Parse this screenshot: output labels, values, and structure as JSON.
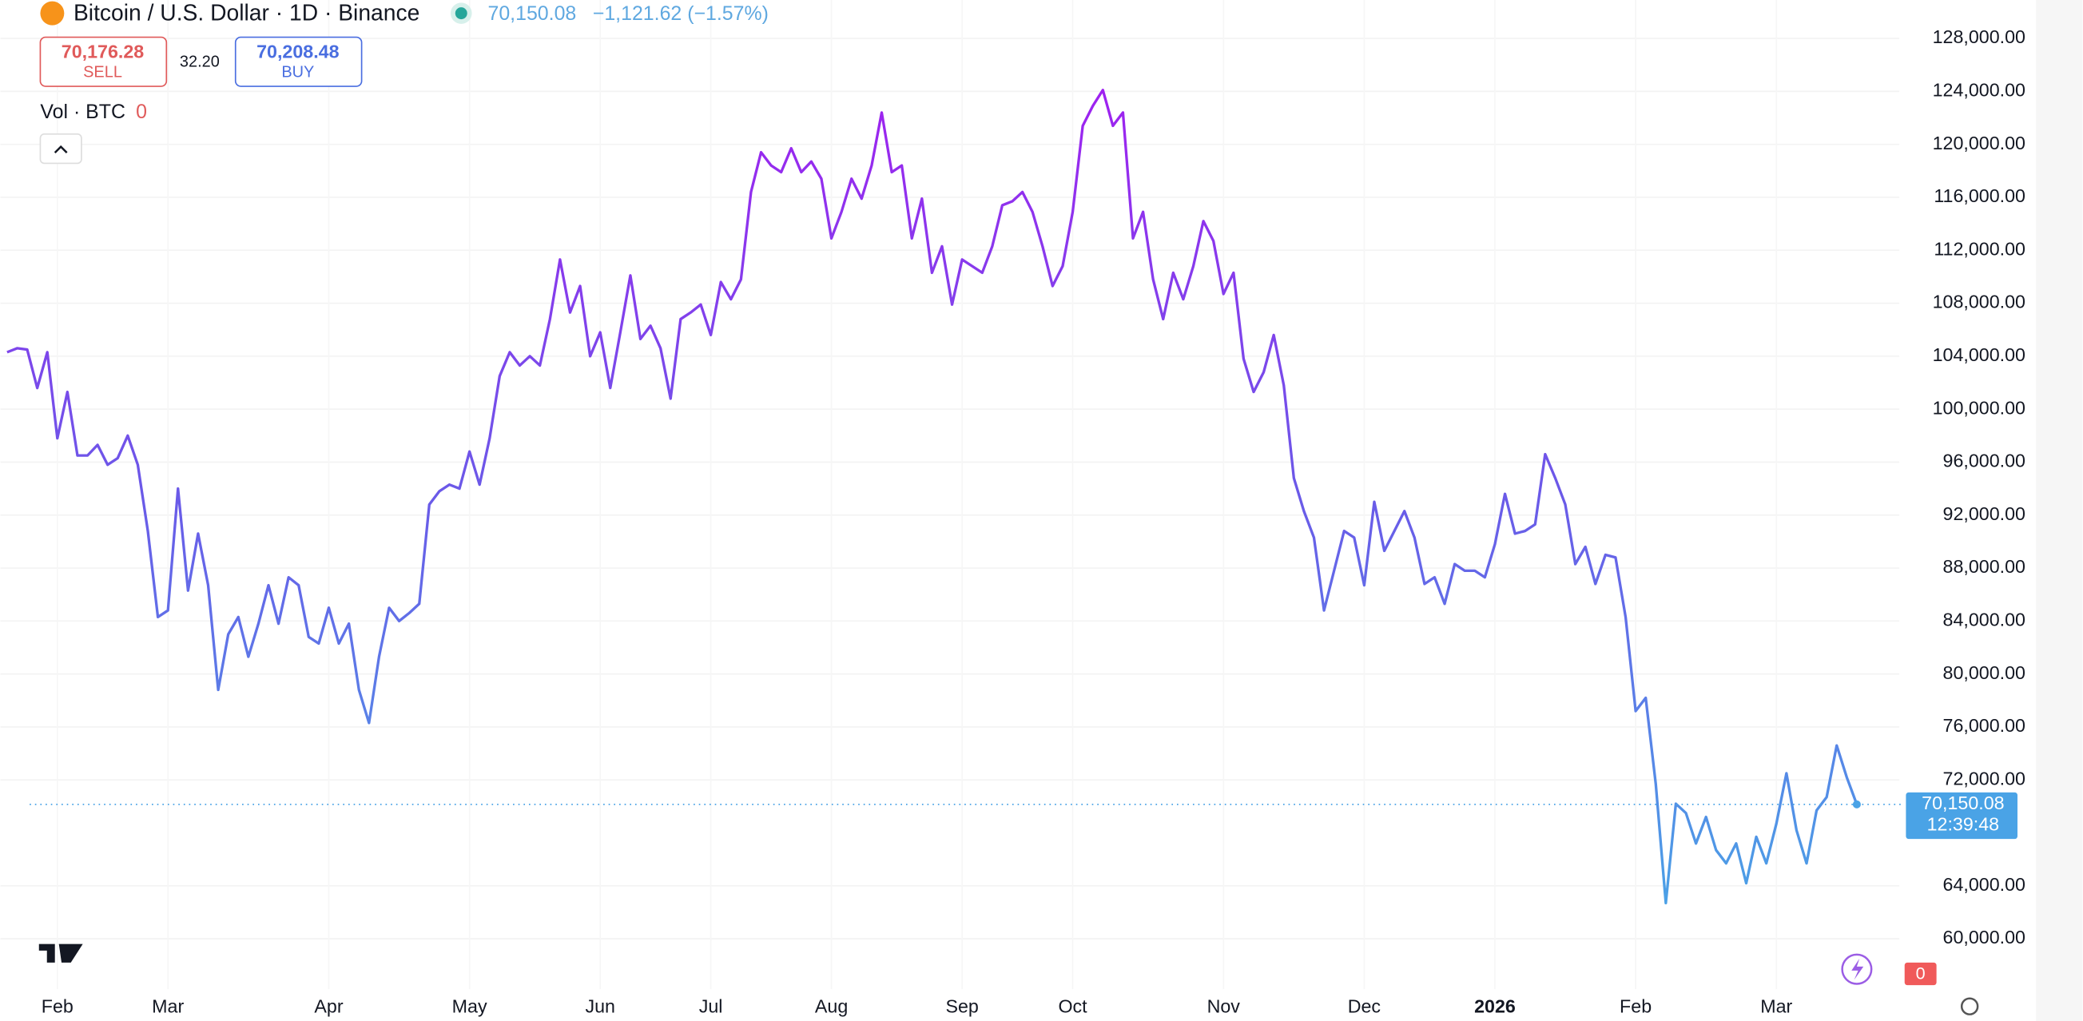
{
  "header": {
    "symbol": "Bitcoin / U.S. Dollar · 1D · Binance",
    "last_price": "70,150.08",
    "change": "−1,121.62 (−1.57%)",
    "sell_price": "70,176.28",
    "sell_label": "SELL",
    "spread": "32.20",
    "buy_price": "70,208.48",
    "buy_label": "BUY",
    "volume_label": "Vol · BTC",
    "volume_value": "0",
    "price_tag": "70,150.08",
    "countdown": "12:39:48",
    "badge": "0"
  },
  "chart_data": {
    "type": "line",
    "categories": [
      null,
      null,
      null,
      null,
      null,
      "Feb",
      null,
      null,
      null,
      null,
      null,
      null,
      null,
      null,
      null,
      null,
      "Mar",
      null,
      null,
      null,
      null,
      null,
      null,
      null,
      null,
      null,
      null,
      null,
      null,
      null,
      null,
      null,
      "Apr",
      null,
      null,
      null,
      null,
      null,
      null,
      null,
      null,
      null,
      null,
      null,
      null,
      null,
      "May",
      null,
      null,
      null,
      null,
      null,
      null,
      null,
      null,
      null,
      null,
      null,
      null,
      "Jun",
      null,
      null,
      null,
      null,
      null,
      null,
      null,
      null,
      null,
      null,
      "Jul",
      null,
      null,
      null,
      null,
      null,
      null,
      null,
      null,
      null,
      null,
      null,
      "Aug",
      null,
      null,
      null,
      null,
      null,
      null,
      null,
      null,
      null,
      null,
      null,
      null,
      "Sep",
      null,
      null,
      null,
      null,
      null,
      null,
      null,
      null,
      null,
      null,
      "Oct",
      null,
      null,
      null,
      null,
      null,
      null,
      null,
      null,
      null,
      null,
      null,
      null,
      null,
      null,
      "Nov",
      null,
      null,
      null,
      null,
      null,
      null,
      null,
      null,
      null,
      null,
      null,
      null,
      null,
      "Dec",
      null,
      null,
      null,
      null,
      null,
      null,
      null,
      null,
      null,
      null,
      null,
      null,
      "2026",
      null,
      null,
      null,
      null,
      null,
      null,
      null,
      null,
      null,
      null,
      null,
      null,
      null,
      "Feb",
      null,
      null,
      null,
      null,
      null,
      null,
      null,
      null,
      null,
      null,
      null,
      null,
      null,
      "Mar",
      null,
      null,
      null,
      null,
      null,
      null,
      null,
      null
    ],
    "series": [
      {
        "name": "BTCUSD",
        "colors": [
          "#a020f0",
          "#6a5ae8",
          "#4aa3e6"
        ],
        "values": [
          104300,
          104600,
          104500,
          101600,
          104300,
          97800,
          101300,
          96500,
          96500,
          97300,
          95800,
          96300,
          98000,
          95800,
          90800,
          84300,
          84800,
          94000,
          86300,
          90600,
          86700,
          78800,
          83000,
          84300,
          81300,
          83800,
          86700,
          83800,
          87300,
          86700,
          82800,
          82300,
          85000,
          82300,
          83800,
          78800,
          76300,
          81300,
          85000,
          84000,
          84600,
          85300,
          92800,
          93800,
          94300,
          94000,
          96800,
          94300,
          97800,
          102500,
          104300,
          103300,
          104000,
          103300,
          106800,
          111300,
          107300,
          109300,
          104000,
          105800,
          101600,
          105800,
          110100,
          105300,
          106300,
          104600,
          100800,
          106800,
          107300,
          107900,
          105600,
          109600,
          108300,
          109800,
          116400,
          119400,
          118400,
          117900,
          119700,
          117900,
          118700,
          117400,
          112900,
          114900,
          117400,
          115900,
          118400,
          122400,
          117900,
          118400,
          112900,
          115900,
          110300,
          112300,
          107900,
          111300,
          110800,
          110300,
          112300,
          115400,
          115700,
          116400,
          114900,
          112300,
          109300,
          110800,
          114900,
          121400,
          122900,
          124100,
          121400,
          122400,
          112900,
          114900,
          109800,
          106800,
          110300,
          108300,
          110800,
          114200,
          112700,
          108700,
          110300,
          103800,
          101300,
          102800,
          105600,
          101800,
          94800,
          92300,
          90300,
          84800,
          87800,
          90800,
          90300,
          86700,
          93000,
          89300,
          90800,
          92300,
          90300,
          86800,
          87300,
          85300,
          88300,
          87800,
          87800,
          87300,
          89800,
          93600,
          90600,
          90800,
          91300,
          96600,
          94800,
          92800,
          88300,
          89600,
          86800,
          89000,
          88800,
          84300,
          77200,
          78200,
          71700,
          62700,
          70200,
          69500,
          67200,
          69200,
          66700,
          65700,
          67200,
          64200,
          67700,
          65700,
          68700,
          72500,
          68200,
          65700,
          69700,
          70700,
          74600,
          72200,
          70150.08
        ]
      }
    ],
    "ylim": [
      56700,
      130900
    ],
    "yticks": [
      {
        "value": 60000,
        "label": "60,000.00"
      },
      {
        "value": 64000,
        "label": "64,000.00"
      },
      {
        "value": 72000,
        "label": "72,000.00"
      },
      {
        "value": 76000,
        "label": "76,000.00"
      },
      {
        "value": 80000,
        "label": "80,000.00"
      },
      {
        "value": 84000,
        "label": "84,000.00"
      },
      {
        "value": 88000,
        "label": "88,000.00"
      },
      {
        "value": 92000,
        "label": "92,000.00"
      },
      {
        "value": 96000,
        "label": "96,000.00"
      },
      {
        "value": 100000,
        "label": "100,000.00"
      },
      {
        "value": 104000,
        "label": "104,000.00"
      },
      {
        "value": 108000,
        "label": "108,000.00"
      },
      {
        "value": 112000,
        "label": "112,000.00"
      },
      {
        "value": 116000,
        "label": "116,000.00"
      },
      {
        "value": 120000,
        "label": "120,000.00"
      },
      {
        "value": 124000,
        "label": "124,000.00"
      },
      {
        "value": 128000,
        "label": "128,000.00"
      }
    ],
    "grid": true,
    "price_line_color": "#4aa3e6"
  }
}
